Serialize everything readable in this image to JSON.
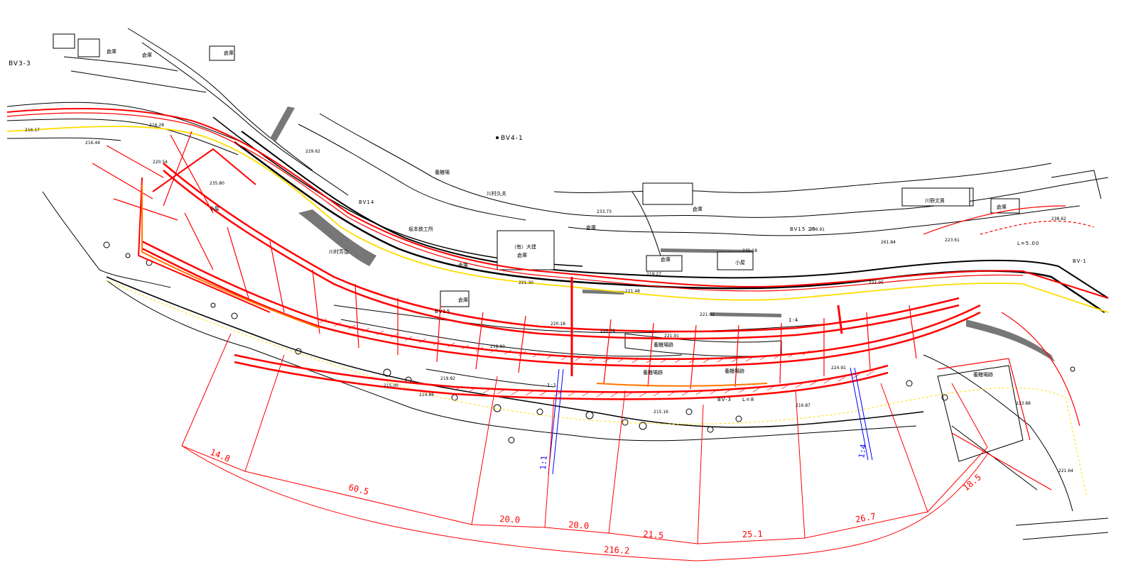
{
  "map": {
    "benchmarks": [
      "BV3-3",
      "BV4-1"
    ],
    "buildings": [
      "倉庫",
      "倉庫",
      "倉庫",
      "（有）大建",
      "倉庫",
      "倉庫",
      "倉庫",
      "倉庫",
      "小屋",
      "小屋",
      "倉庫",
      "倉庫",
      "倉庫"
    ],
    "owners": [
      "川村久夫",
      "川村芳弘",
      "川野文男",
      "坂本鉄工所"
    ],
    "facilities": [
      "養鰻場",
      "養鰻場跡",
      "養鰻場跡",
      "養鰻場跡",
      "養鰻場跡"
    ],
    "section_labels": [
      "BV15",
      "BV-3",
      "L=8",
      "1:1",
      "1:4",
      "BV14",
      "BV15 20",
      "L=5.00",
      "BV-1"
    ],
    "dimensions_outer": [
      "14.8",
      "60.5",
      "20.0",
      "20.0",
      "21.5",
      "25.1",
      "26.7",
      "18.5"
    ],
    "dimension_total": "216.2",
    "slope_blue": [
      "1:1",
      "1:4"
    ],
    "spot_heights": [
      "216.28",
      "216.44",
      "216.17",
      "229.62",
      "221.30",
      "221.48",
      "233.73",
      "235.18",
      "218.80",
      "219.82",
      "235.80",
      "256.91",
      "221.91",
      "221.02",
      "220.78",
      "219.27",
      "220.18",
      "224.91",
      "215.00",
      "214.86",
      "216.87",
      "215.16",
      "221.95",
      "223.61",
      "261.84",
      "220.54",
      "238.62",
      "221.64",
      "223.88"
    ],
    "colors": {
      "background": "#ffffff",
      "linework": "#000000",
      "design": "#ff0000",
      "centerline": "#ffdd00",
      "slope": "#0000ff",
      "fill": "#777777"
    }
  }
}
